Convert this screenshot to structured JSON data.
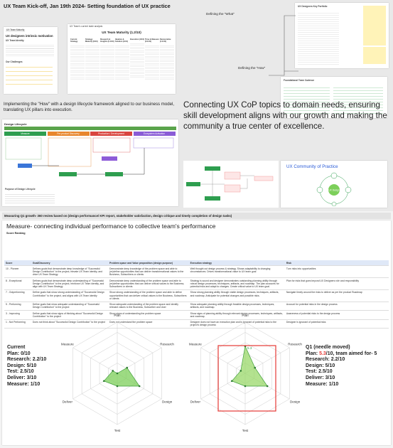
{
  "header": {
    "title": "UX Team Kick-off, Jan 19th 2024- Setting foundation of UX practice"
  },
  "slides": {
    "motivation_tag": "UX Team Maturity",
    "motivation_title": "UX designers intrinsic motivation",
    "motivation_section": "UX Team Identity",
    "motivation_sub": "Our Challenges",
    "maturity_tag": "UX Team's current state analysis",
    "maturity_title": "UX Team Maturity (1.2/10)",
    "maturity_columns": [
      "Current Strategy",
      "Strategy Maturity (0/10)",
      "Research & Insights (0.1/10)",
      "Ideation & Solution (1/10)",
      "Execution (4/10)",
      "Time & Measure (0.1/10)",
      "Democratize (1.1/10)"
    ],
    "what_label": "Defining the \"What\"",
    "what_title": "UX Designers Key Portfolio",
    "how_label": "Defining the \"How\"",
    "how_title": "Foundational Team Cadence"
  },
  "lifecycle": {
    "intro": "Implementing the \"How\" with a design lifecycle framework aligned to our business model, translating UX pillars into execution.",
    "title": "Design Lifecycle",
    "phases": [
      "Measure",
      "Pre-product Discovery",
      "Production / Development",
      "Ecosystem Activation"
    ],
    "footer_title": "Purpose of Design Lifecycle"
  },
  "cop": {
    "intro": "Connecting UX CoP topics to domain needs, ensuring skill development aligns with our growth and making the community a true center of excellence.",
    "title": "UX Community of Practice",
    "center": "UX Design"
  },
  "measure": {
    "banner": "Measuring Q1 growth- 360 review based on (design performance/ KPI report, stakeholder satisfaction, design critique and timely completion of design tasks)",
    "title": "Measure- connecting individual performance to collective team's performance",
    "subtitle": "Score Ranking",
    "table": {
      "headers": [
        "Score",
        "Goal/Discovery",
        "Problem space and Value proposition (design purpose)",
        "Execution strategy",
        "Risk"
      ],
      "rows": [
        [
          "10 - Pioneer",
          "Defines goals that demonstrate deep knowledge of \"Successful Design Contribution\" to the project, elevate UX Team identity, and drive UX Team Strategy",
          "Demonstrate deep knowledge of the problem space and able to (re)define opportunities that can deliver transformational values to the Business, Subscribers or clients",
          "Well thought out design process & strategy. Shows adaptability to changing circumstances. Drives transformational value to UX team goal",
          "Turn risks into opportunities"
        ],
        [
          "8 - Exceptional",
          "Defines goals that demonstrate deep understanding of \"Successful Design Contribution\" to the project, reinforce UX Team identity, and align with UX Team Strategy",
          "Demonstrate deep understanding of the problem space and able to (re)define opportunities that can deliver critical values to the Business, Subscribers or clients",
          "Strategy is sound and designer demonstrates outstanding planning ability through robust design processes, techniques, artifacts, and roadmap. The plan accounts for potential risks and adapt to changes. Create critical value to UX team goal.",
          "Plan for risks that goes beyond UX Designers role and responsibility"
        ],
        [
          "7 - Outperforming",
          "Define goals that show strong understanding of \"Successful Design Contribution\" to the project, and aligns with UX Team identity",
          "Show strong understanding of the problem space and able to define opportunities that can deliver critical values to the Business, Subscribers or clients",
          "Show strong planning ability through viable design processes, techniques, artifacts, and roadmap. Anticipate for potential changes and possible risks.",
          "Navigate timely around the risks to deliver as per the product Roadmap"
        ],
        [
          "5 - Performing",
          "Define goals that show adequate understanding of \"Successful Design Contribution\" to the project",
          "Show adequate understanding of the problem space and identify relevant values to the Business, Subscriber and User",
          "Show adequate planning ability through feasible design processes, techniques, artifacts, and roadmap.",
          "Account for potential risks in the design process"
        ],
        [
          "3 - Improving",
          "Define goals that show signs of thinking about \"Successful Design Contribution\" to the project",
          "Show signs of understanding the problem space",
          "Show signs of planning ability through relevant design processes, techniques, artifacts, and roadmap.",
          "Awareness of potential risks to the design process"
        ],
        [
          "1 - Not Performing",
          "Does not think about \"Successful Design Contribution\" to the project",
          "Does not understand the problem space",
          "Designer does not have an execution plan and is ignorant of potential risks to the project's design process",
          "Designer is ignorant of potential risks"
        ]
      ]
    }
  },
  "radars": [
    {
      "title": "Current",
      "rlim": [
        0,
        10
      ],
      "color": "#7ccf5a",
      "axes": [
        "Plan",
        "Research",
        "Design",
        "Test",
        "Deliver",
        "Measure"
      ],
      "scores": [
        {
          "prefix": "Plan: ",
          "value": 0,
          "suffix": "/10"
        },
        {
          "prefix": "Research: ",
          "value": 2.2,
          "suffix": "/10"
        },
        {
          "prefix": "Design: ",
          "value": 5,
          "suffix": "/10"
        },
        {
          "prefix": "Test: ",
          "value": 2.5,
          "suffix": "/10"
        },
        {
          "prefix": "Deliver: ",
          "value": 3,
          "suffix": "/10"
        },
        {
          "prefix": "Measure: ",
          "value": 1,
          "suffix": "/10"
        }
      ]
    },
    {
      "title": "Q1 (needle moved)",
      "rlim": [
        0,
        10
      ],
      "color": "#9ad86a",
      "axes": [
        "Plan",
        "Research",
        "Design",
        "Test",
        "Deliver",
        "Measure"
      ],
      "scores": [
        {
          "prefix": "Plan: ",
          "value": 5.3,
          "suffix": "/10, team aimed for- 5",
          "value_color": "#e53935"
        },
        {
          "prefix": "Research: ",
          "value": 2.2,
          "suffix": "/10"
        },
        {
          "prefix": "Design: ",
          "value": 5,
          "suffix": "/10"
        },
        {
          "prefix": "Test: ",
          "value": 2.5,
          "suffix": "/10"
        },
        {
          "prefix": "Deliver: ",
          "value": 3,
          "suffix": "/10"
        },
        {
          "prefix": "Measure: ",
          "value": 1,
          "suffix": "/10"
        }
      ]
    }
  ]
}
